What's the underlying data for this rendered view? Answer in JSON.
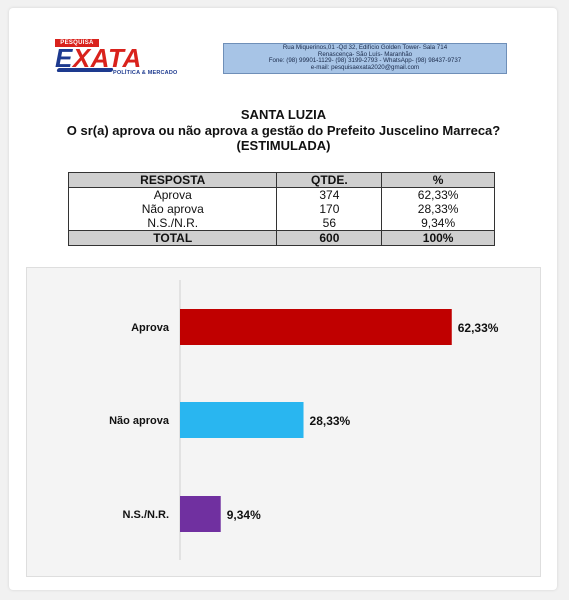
{
  "logo": {
    "top_text": "PESQUISA",
    "word_e": "E",
    "word_rest": "XATA",
    "subtitle": "POLÍTICA & MERCADO"
  },
  "contact": {
    "line1": "Rua Miquerinos,01 -Qd 32,  Edifício Golden Tower- Sala 714",
    "line2": "Renascença- São Luís- Maranhão",
    "line3": "Fone: (98) 99901-1129- (98) 3199-2793 - WhatsApp- (98) 98437-9737",
    "line4": "e-mail: pesquisaexata2020@gmail.com"
  },
  "title": {
    "city": "SANTA LUZIA",
    "question": "O sr(a) aprova ou não aprova a gestão do Prefeito Juscelino Marreca?",
    "type": "(ESTIMULADA)"
  },
  "table": {
    "headers": [
      "RESPOSTA",
      "QTDE.",
      "%"
    ],
    "rows": [
      [
        "Aprova",
        "374",
        "62,33%"
      ],
      [
        "Não aprova",
        "170",
        "28,33%"
      ],
      [
        "N.S./N.R.",
        "56",
        "9,34%"
      ]
    ],
    "total": [
      "TOTAL",
      "600",
      "100%"
    ]
  },
  "chart_data": {
    "type": "bar",
    "orientation": "horizontal",
    "categories": [
      "Aprova",
      "Não aprova",
      "N.S./N.R."
    ],
    "values": [
      62.33,
      28.33,
      9.34
    ],
    "labels": [
      "62,33%",
      "28,33%",
      "9,34%"
    ],
    "colors": [
      "#c00000",
      "#29b6f0",
      "#7030a0"
    ],
    "xlim": [
      0,
      100
    ],
    "grid": false,
    "legend": "none"
  }
}
